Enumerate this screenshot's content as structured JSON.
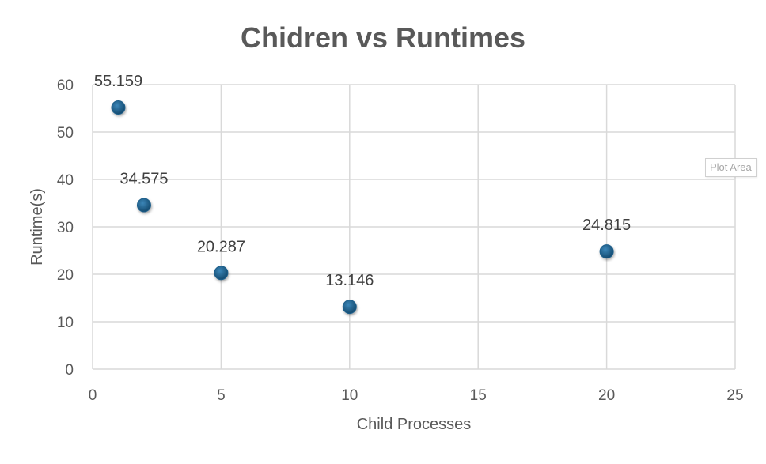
{
  "chart_data": {
    "type": "scatter",
    "title": "Chidren vs Runtimes",
    "xlabel": "Child Processes",
    "ylabel": "Runtime(s)",
    "xlim": [
      0,
      25
    ],
    "ylim": [
      0,
      60
    ],
    "xticks": [
      0,
      5,
      10,
      15,
      20,
      25
    ],
    "yticks": [
      0,
      10,
      20,
      30,
      40,
      50,
      60
    ],
    "grid": true,
    "legend": "none",
    "marker_color": "#1f5f8b",
    "points": [
      {
        "x": 1,
        "y": 55.159,
        "label": "55.159"
      },
      {
        "x": 2,
        "y": 34.575,
        "label": "34.575"
      },
      {
        "x": 5,
        "y": 20.287,
        "label": "20.287"
      },
      {
        "x": 10,
        "y": 13.146,
        "label": "13.146"
      },
      {
        "x": 20,
        "y": 24.815,
        "label": "24.815"
      }
    ]
  },
  "tooltip": {
    "text": "Plot Area"
  }
}
